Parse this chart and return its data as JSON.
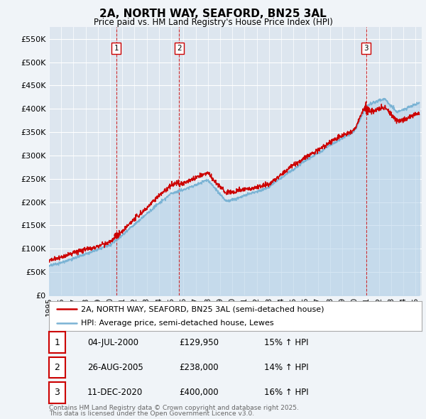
{
  "title": "2A, NORTH WAY, SEAFORD, BN25 3AL",
  "subtitle": "Price paid vs. HM Land Registry's House Price Index (HPI)",
  "legend_label_red": "2A, NORTH WAY, SEAFORD, BN25 3AL (semi-detached house)",
  "legend_label_blue": "HPI: Average price, semi-detached house, Lewes",
  "table_rows": [
    {
      "num": "1",
      "date": "04-JUL-2000",
      "price": "£129,950",
      "hpi": "15% ↑ HPI"
    },
    {
      "num": "2",
      "date": "26-AUG-2005",
      "price": "£238,000",
      "hpi": "14% ↑ HPI"
    },
    {
      "num": "3",
      "date": "11-DEC-2020",
      "price": "£400,000",
      "hpi": "16% ↑ HPI"
    }
  ],
  "footnote1": "Contains HM Land Registry data © Crown copyright and database right 2025.",
  "footnote2": "This data is licensed under the Open Government Licence v3.0.",
  "ylim": [
    0,
    575000
  ],
  "yticks": [
    0,
    50000,
    100000,
    150000,
    200000,
    250000,
    300000,
    350000,
    400000,
    450000,
    500000,
    550000
  ],
  "bg_color": "#f0f4f8",
  "plot_bg": "#dde6ef",
  "red_color": "#cc0000",
  "blue_color": "#7ab3d4",
  "blue_fill": "#aecfe8",
  "vline_color": "#cc0000",
  "grid_color": "#ffffff",
  "sale1_year": 2000.5,
  "sale2_year": 2005.65,
  "sale3_year": 2020.95,
  "sale1_price": 129950,
  "sale2_price": 238000,
  "sale3_price": 400000
}
